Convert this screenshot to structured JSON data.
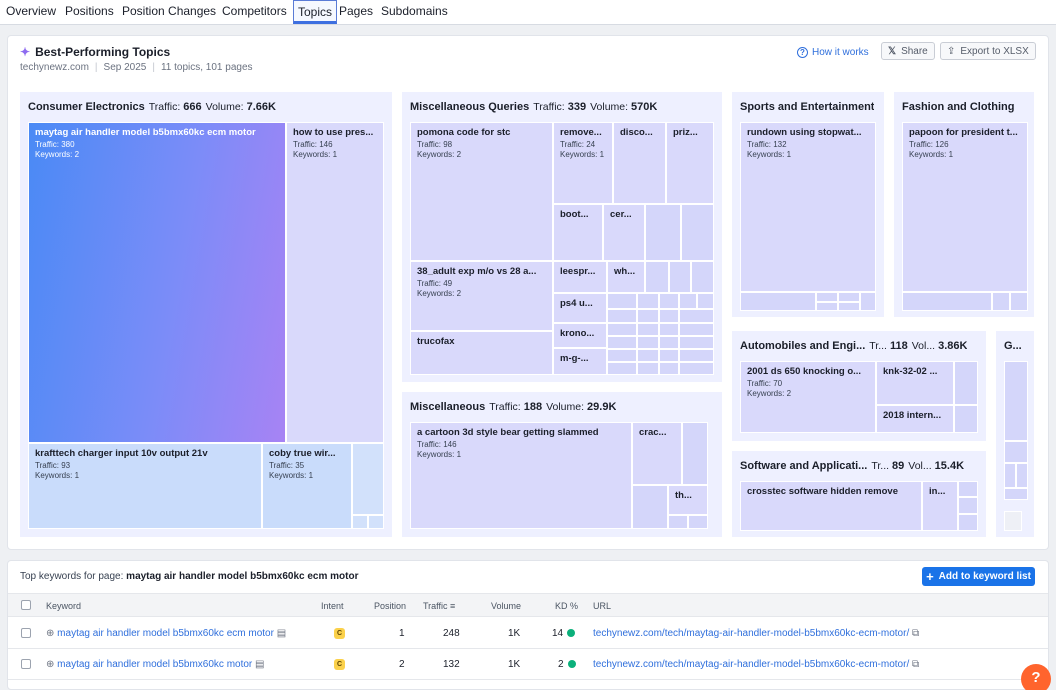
{
  "tabs": [
    "Overview",
    "Positions",
    "Position Changes",
    "Competitors",
    "Topics",
    "Pages",
    "Subdomains"
  ],
  "active_tab": "Topics",
  "header": {
    "title": "Best-Performing Topics",
    "domain": "techynewz.com",
    "period": "Sep 2025",
    "counts": "11 topics, 101 pages",
    "how_it_works": "How it works",
    "share": "Share",
    "export": "Export to XLSX"
  },
  "labels": {
    "traffic": "Traffic:",
    "volume": "Volume:",
    "keywords": "Keywords:"
  },
  "topics": {
    "consumer_electronics": {
      "name": "Consumer Electronics",
      "traffic": "666",
      "volume": "7.66K"
    },
    "misc_queries": {
      "name": "Miscellaneous Queries",
      "traffic": "339",
      "volume": "570K"
    },
    "miscellaneous": {
      "name": "Miscellaneous",
      "traffic": "188",
      "volume": "29.9K"
    },
    "sports": {
      "name": "Sports and Entertainment"
    },
    "fashion": {
      "name": "Fashion and Clothing"
    },
    "automobiles": {
      "name": "Automobiles and Engi...",
      "tr": "Tr...",
      "traffic": "118",
      "vol": "Vol...",
      "volume": "3.86K"
    },
    "software": {
      "name": "Software and Applicati...",
      "tr": "Tr...",
      "traffic": "89",
      "vol": "Vol...",
      "volume": "15.4K"
    },
    "g": {
      "name": "G..."
    }
  },
  "cells": {
    "ce1": {
      "title": "maytag air handler model b5bmx60kc ecm motor",
      "traffic": "Traffic: 380",
      "keywords": "Keywords: 2"
    },
    "ce2": {
      "title": "how to use pres...",
      "traffic": "Traffic: 146",
      "keywords": "Keywords: 1"
    },
    "ce3": {
      "title": "krafttech charger input 10v output 21v",
      "traffic": "Traffic: 93",
      "keywords": "Keywords: 1"
    },
    "ce4": {
      "title": "coby true wir...",
      "traffic": "Traffic: 35",
      "keywords": "Keywords: 1"
    },
    "mq1": {
      "title": "pomona code for stc",
      "traffic": "Traffic: 98",
      "keywords": "Keywords: 2"
    },
    "mq2": {
      "title": "remove...",
      "traffic": "Traffic: 24",
      "keywords": "Keywords: 1"
    },
    "mq3": {
      "title": "disco..."
    },
    "mq4": {
      "title": "priz..."
    },
    "mq5": {
      "title": "boot..."
    },
    "mq6": {
      "title": "cer..."
    },
    "mq7": {
      "title": "38_adult exp m/o vs 28 a...",
      "traffic": "Traffic: 49",
      "keywords": "Keywords: 2"
    },
    "mq8": {
      "title": "leespr..."
    },
    "mq9": {
      "title": "wh..."
    },
    "mq10": {
      "title": "ps4 u..."
    },
    "mq11": {
      "title": "trucofax"
    },
    "mq12": {
      "title": "krono..."
    },
    "mq13": {
      "title": "m-g-..."
    },
    "m1": {
      "title": "a cartoon 3d style bear getting slammed",
      "traffic": "Traffic: 146",
      "keywords": "Keywords: 1"
    },
    "m2": {
      "title": "crac..."
    },
    "m3": {
      "title": "th..."
    },
    "s1": {
      "title": "rundown using stopwat...",
      "traffic": "Traffic: 132",
      "keywords": "Keywords: 1"
    },
    "f1": {
      "title": "papoon for president t...",
      "traffic": "Traffic: 126",
      "keywords": "Keywords: 1"
    },
    "a1": {
      "title": "2001 ds 650 knocking o...",
      "traffic": "Traffic: 70",
      "keywords": "Keywords: 2"
    },
    "a2": {
      "title": "knk-32-02 ..."
    },
    "a3": {
      "title": "2018 intern..."
    },
    "sw1": {
      "title": "crosstec software hidden remove"
    },
    "sw2": {
      "title": "in..."
    }
  },
  "keywords_panel": {
    "title_prefix": "Top keywords for page:",
    "title_page": "maytag air handler model b5bmx60kc ecm motor",
    "add_button": "Add to keyword list",
    "columns": [
      "Keyword",
      "Intent",
      "Position",
      "Traffic",
      "Volume",
      "KD %",
      "URL"
    ],
    "rows": [
      {
        "keyword": "maytag air handler model b5bmx60kc ecm motor",
        "intent": "C",
        "position": "1",
        "traffic": "248",
        "volume": "1K",
        "kd": "14",
        "url": "techynewz.com/tech/maytag-air-handler-model-b5bmx60kc-ecm-motor/"
      },
      {
        "keyword": "maytag air handler model b5bmx60kc motor",
        "intent": "C",
        "position": "2",
        "traffic": "132",
        "volume": "1K",
        "kd": "2",
        "url": "techynewz.com/tech/maytag-air-handler-model-b5bmx60kc-ecm-motor/"
      }
    ]
  },
  "help": "?"
}
